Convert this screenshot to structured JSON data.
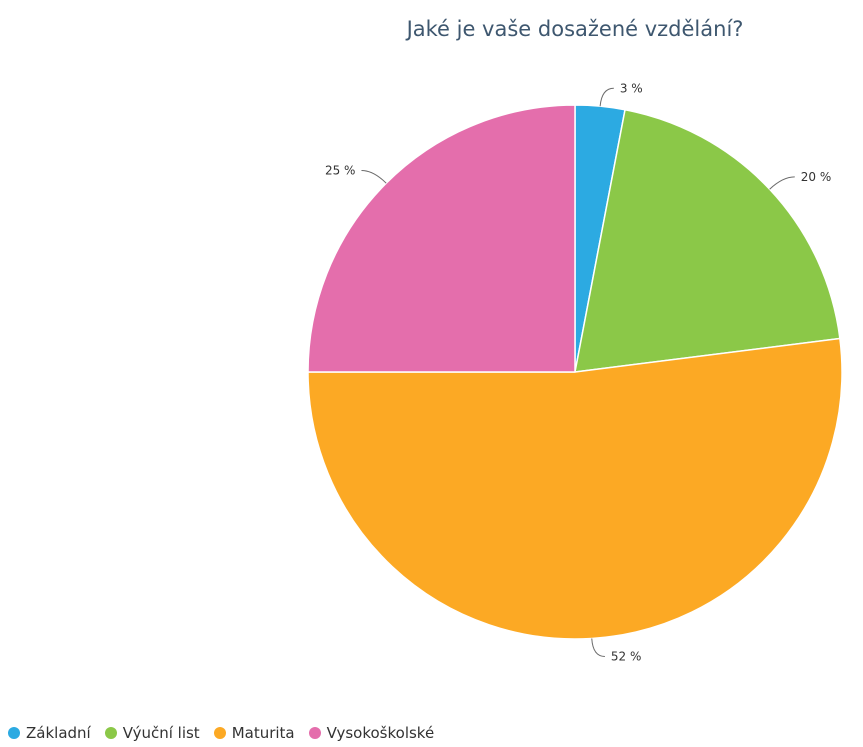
{
  "chart_data": {
    "type": "pie",
    "title": "Jaké je vaše dosažené vzdělání?",
    "categories": [
      "Základní",
      "Výuční list",
      "Maturita",
      "Vysokoškolské"
    ],
    "values": [
      3,
      20,
      52,
      25
    ],
    "data_labels": [
      "3 %",
      "20 %",
      "52 %",
      "25 %"
    ],
    "colors": [
      "#2caae2",
      "#8bc848",
      "#fca924",
      "#e46eac"
    ],
    "legend_position": "bottom-left",
    "start_angle": "top, clockwise"
  }
}
